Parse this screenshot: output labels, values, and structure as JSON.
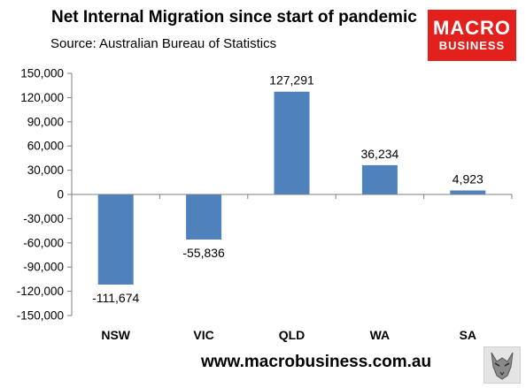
{
  "header": {
    "title": "Net Internal Migration since start of pandemic",
    "subtitle": "Source: Australian Bureau of Statistics"
  },
  "logo": {
    "line1": "MACRO",
    "line2": "BUSINESS",
    "bg_color": "#e3201b",
    "text_color": "#ffffff"
  },
  "footer": {
    "url": "www.macrobusiness.com.au"
  },
  "chart_data": {
    "type": "bar",
    "categories": [
      "NSW",
      "VIC",
      "QLD",
      "WA",
      "SA"
    ],
    "values": [
      -111674,
      -55836,
      127291,
      36234,
      4923
    ],
    "data_labels": [
      "-111,674",
      "-55,836",
      "127,291",
      "36,234",
      "4,923"
    ],
    "ylim": [
      -150000,
      150000
    ],
    "yticks": [
      150000,
      120000,
      90000,
      60000,
      30000,
      0,
      -30000,
      -60000,
      -90000,
      -120000,
      -150000
    ],
    "ytick_labels": [
      "150,000",
      "120,000",
      "90,000",
      "60,000",
      "30,000",
      "0",
      "-30,000",
      "-60,000",
      "-90,000",
      "-120,000",
      "-150,000"
    ],
    "title": "",
    "xlabel": "",
    "ylabel": "",
    "bar_color": "#4f81bd",
    "grid": false,
    "legend": "none"
  }
}
